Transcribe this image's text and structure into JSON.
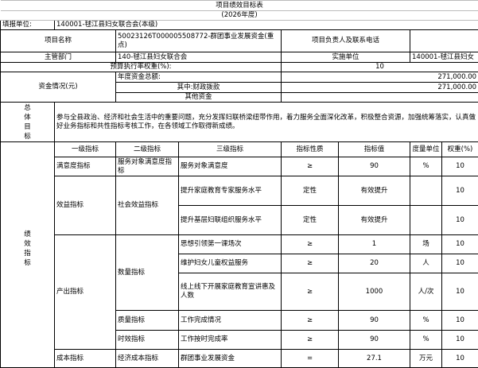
{
  "title": "项目绩效目标表",
  "year": "(2026年度)",
  "filing_unit_label": "填报单位:",
  "filing_unit_value": "140001-毬江县妇女联合会(本级)",
  "project_name_label": "项目名称",
  "project_name_value": "50023126T000005508772-群团事业发展资金(重点)",
  "contact_label": "项目负责人及联系电话",
  "contact_value": "",
  "dept_label": "主管部门",
  "dept_value": "140-毬江县妇女联合会",
  "impl_label": "实施单位",
  "impl_value": "140001-毬江县妇女",
  "budget_rate_label": "预算执行率权重(%):",
  "budget_rate_value": "10",
  "funds_label": "资金情况(元)",
  "annual_total_label": "年度资金总额:",
  "annual_total_value": "271,000.00",
  "fiscal_label": "其中:财政拨款",
  "fiscal_value": "271,000.00",
  "other_label": "其他资金",
  "other_value": "",
  "overall_goal_label": "总体目标",
  "overall_goal_text": "参与全县政治、经济和社会生活中的重要问题，充分发挥妇联桥梁纽带作用，着力服务全面深化改革，积极整合资源，加强统筹落实，认真做好业务指标和共性指标考核工作，在各领域工作取得新成绩。",
  "perf_label": "绩效指标",
  "headers": [
    "一级指标",
    "二级指标",
    "三级指标",
    "指标性质",
    "指标值",
    "度量单位",
    "权重(%)"
  ],
  "rows": [
    {
      "l1": "满意度指标",
      "l2": "服务对象满意度指标",
      "l3": "服务对象满意度",
      "nature": "≥",
      "value": "90",
      "unit": "%",
      "weight": "10"
    },
    {
      "l1": "效益指标",
      "l2": "社会效益指标",
      "l3": "提升家庭教育专家服务水平",
      "nature": "定性",
      "value": "有效提升",
      "unit": "",
      "weight": "10"
    },
    {
      "l3": "提升基层妇联组织服务水平",
      "nature": "定性",
      "value": "有效提升",
      "unit": "",
      "weight": "10"
    },
    {
      "l1": "产出指标",
      "l2": "数量指标",
      "l3": "思想引领第一课场次",
      "nature": "≥",
      "value": "1",
      "unit": "场",
      "weight": "10"
    },
    {
      "l3": "维护妇女儿童权益服务",
      "nature": "≥",
      "value": "20",
      "unit": "人",
      "weight": "10"
    },
    {
      "l3": "线上线下开展家庭教育宣讲惠及人数",
      "nature": "≥",
      "value": "1000",
      "unit": "人/次",
      "weight": "10"
    },
    {
      "l2": "质量指标",
      "l3": "工作完成情况",
      "nature": "≥",
      "value": "90",
      "unit": "%",
      "weight": "10"
    },
    {
      "l2": "时效指标",
      "l3": "工作按时完成率",
      "nature": "≥",
      "value": "90",
      "unit": "%",
      "weight": "10"
    },
    {
      "l1": "成本指标",
      "l2": "经济成本指标",
      "l3": "群团事业发展资金",
      "nature": "=",
      "value": "27.1",
      "unit": "万元",
      "weight": "10"
    }
  ]
}
